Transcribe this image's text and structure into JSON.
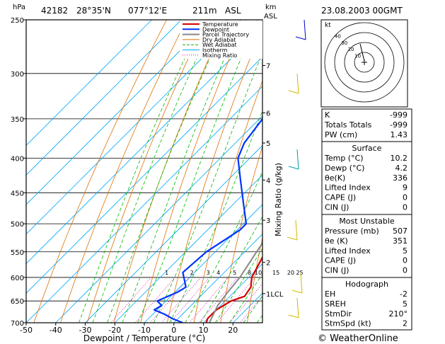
{
  "header": {
    "station": "42182",
    "lat": "28°35'N",
    "lon": "077°12'E",
    "elev": "211m",
    "asl": "ASL",
    "date": "23.08.2003 00GMT",
    "hpa_label": "hPa",
    "km_label": "km",
    "km_asl": "ASL"
  },
  "chart_data": {
    "type": "line",
    "xlabel": "Dewpoint / Temperature (°C)",
    "ylabel_right": "Mixing Ratio (g/kg)",
    "x_ticks": [
      -50,
      -40,
      -30,
      -20,
      -10,
      0,
      10,
      20
    ],
    "xlim": [
      -50,
      30
    ],
    "pressure_levels": [
      250,
      300,
      350,
      400,
      450,
      500,
      550,
      600,
      650,
      700
    ],
    "plim": [
      250,
      700
    ],
    "km_ticks": [
      {
        "label": "7",
        "p": 292
      },
      {
        "label": "6",
        "p": 343
      },
      {
        "label": "5",
        "p": 380
      },
      {
        "label": "4",
        "p": 431
      },
      {
        "label": "3",
        "p": 494
      },
      {
        "label": "2",
        "p": 570
      },
      {
        "label": "1LCL",
        "p": 634
      }
    ],
    "mixing_ratio_labels": [
      {
        "label": "1",
        "T": -18
      },
      {
        "label": "2",
        "T": -9.5
      },
      {
        "label": "3",
        "T": -4
      },
      {
        "label": "4",
        "T": -0.5
      },
      {
        "label": "5",
        "T": 5
      },
      {
        "label": "8",
        "T": 10
      },
      {
        "label": "10",
        "T": 13
      },
      {
        "label": "15",
        "T": 19
      },
      {
        "label": "20",
        "T": 24
      },
      {
        "label": "25",
        "T": 27
      }
    ],
    "legend": [
      "Temperature",
      "Dewpoint",
      "Parcel Trajectory",
      "Dry Adiabat",
      "Wet Adiabat",
      "Isotherm",
      "Mixing Ratio"
    ],
    "series": [
      {
        "name": "Temperature",
        "color": "#d40000",
        "p": [
          250,
          265,
          300,
          350,
          400,
          420,
          450,
          500,
          550,
          600,
          620,
          640,
          650,
          660,
          670,
          690,
          700
        ],
        "t": [
          -34,
          -32,
          -27,
          -20,
          -11,
          -7,
          -3,
          3,
          7,
          11,
          14,
          15,
          12,
          11,
          10,
          10,
          11
        ]
      },
      {
        "name": "Dewpoint",
        "color": "#0033ff",
        "p": [
          250,
          300,
          350,
          380,
          400,
          430,
          470,
          500,
          510,
          550,
          590,
          620,
          630,
          640,
          650,
          660,
          670,
          680,
          690,
          700
        ],
        "t": [
          -54,
          -52,
          -39,
          -37,
          -34,
          -26,
          -16,
          -9,
          -9,
          -13,
          -14,
          -8,
          -9,
          -11,
          -13,
          -10,
          -11,
          -6,
          -2,
          3
        ]
      },
      {
        "name": "Parcel Trajectory",
        "color": "#888888",
        "p": [
          250,
          300,
          350,
          400,
          450,
          500,
          550,
          600,
          634,
          660,
          700
        ],
        "t": [
          -43,
          -33,
          -23,
          -13,
          -4,
          1,
          4,
          7,
          8,
          9,
          12
        ]
      }
    ]
  },
  "hodograph": {
    "label": "kt",
    "rings": [
      "10",
      "20",
      "30",
      "40"
    ]
  },
  "indices": {
    "k_label": "K",
    "k_val": "-999",
    "tt_label": "Totals Totals",
    "tt_val": "-999",
    "pw_label": "PW (cm)",
    "pw_val": "1.43"
  },
  "surface": {
    "title": "Surface",
    "rows": [
      {
        "label": "Temp (°C)",
        "value": "10.2"
      },
      {
        "label": "Dewp (°C)",
        "value": "4.2"
      },
      {
        "label": "θe(K)",
        "value": "336"
      },
      {
        "label": "Lifted Index",
        "value": "9"
      },
      {
        "label": "CAPE (J)",
        "value": "0"
      },
      {
        "label": "CIN (J)",
        "value": "0"
      }
    ]
  },
  "most_unstable": {
    "title": "Most Unstable",
    "rows": [
      {
        "label": "Pressure (mb)",
        "value": "507"
      },
      {
        "label": "θe (K)",
        "value": "351"
      },
      {
        "label": "Lifted Index",
        "value": "5"
      },
      {
        "label": "CAPE (J)",
        "value": "0"
      },
      {
        "label": "CIN (J)",
        "value": "0"
      }
    ]
  },
  "hodograph_table": {
    "title": "Hodograph",
    "rows": [
      {
        "label": "EH",
        "value": "-2"
      },
      {
        "label": "SREH",
        "value": "5"
      },
      {
        "label": "StmDir",
        "value": "210°"
      },
      {
        "label": "StmSpd (kt)",
        "value": "2"
      }
    ]
  },
  "footer": {
    "copyright": "© WeatherOnline"
  }
}
